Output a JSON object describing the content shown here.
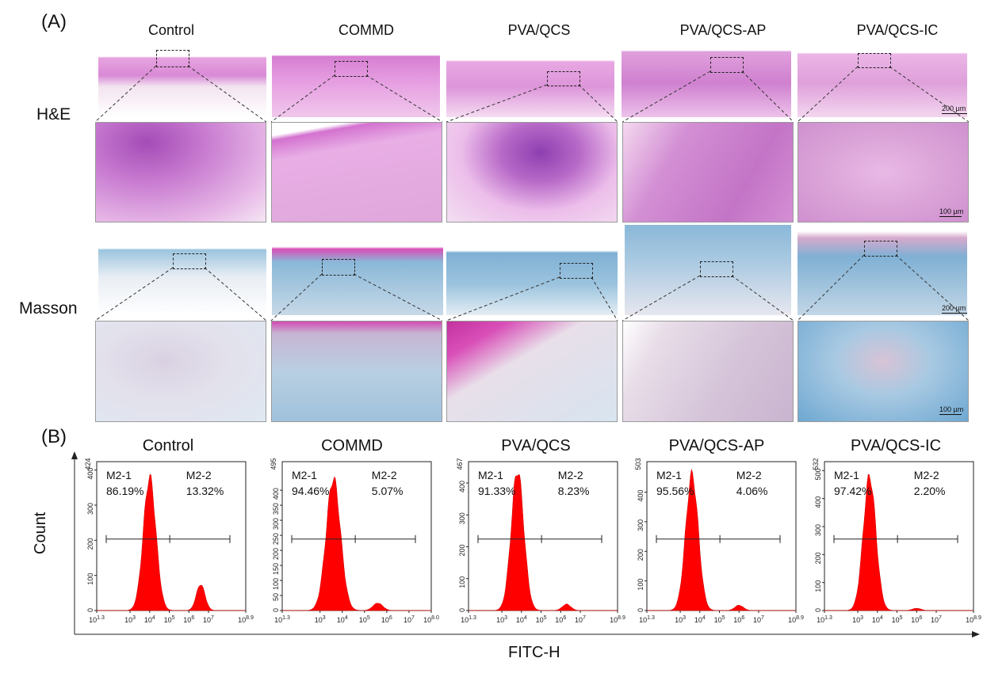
{
  "panel_a_label": "(A)",
  "panel_b_label": "(B)",
  "groups": [
    "Control",
    "COMMD",
    "PVA/QCS",
    "PVA/QCS-AP",
    "PVA/QCS-IC"
  ],
  "row_labels": {
    "he": "H&E",
    "masson": "Masson"
  },
  "scale_bars": {
    "low": "200 µm",
    "high": "100 µm"
  },
  "colors": {
    "he": "#d98ad6",
    "he_dark": "#a34ab3",
    "masson_blue": "#8ab8d8",
    "masson_pink": "#d94fb8",
    "histogram": "#ff0000"
  },
  "flow": {
    "xlabel": "FITC-H",
    "ylabel": "Count",
    "gate_left": "M2-1",
    "gate_right": "M2-2"
  },
  "chart_data": [
    {
      "type": "area",
      "title": "Control",
      "ymax_label": "424",
      "ylim": [
        0,
        424
      ],
      "xlim": [
        1.3,
        8.9
      ],
      "x_scale": "log10",
      "xmax_label": "8.9",
      "yticks": [
        "0",
        "100",
        "200",
        "300",
        "400"
      ],
      "xticks": [
        "1.3",
        "3",
        "4",
        "5",
        "6",
        "7",
        "8.9"
      ],
      "gate_labels": [
        "M2-1",
        "M2-2"
      ],
      "percent_left": "86.19%",
      "percent_right": "13.32%",
      "peaks": [
        {
          "log_x": 4.0,
          "height": 380
        },
        {
          "log_x": 6.6,
          "height": 75
        }
      ]
    },
    {
      "type": "area",
      "title": "COMMD",
      "ymax_label": "495",
      "ylim": [
        0,
        495
      ],
      "xlim": [
        1.3,
        8.0
      ],
      "x_scale": "log10",
      "xmax_label": "8.0",
      "yticks": [
        "0",
        "50",
        "100",
        "150",
        "200",
        "250",
        "300",
        "350",
        "400"
      ],
      "xticks": [
        "1.3",
        "3",
        "4",
        "5",
        "6",
        "7",
        "8.0"
      ],
      "gate_labels": [
        "M2-1",
        "M2-2"
      ],
      "percent_left": "94.46%",
      "percent_right": "5.07%",
      "peaks": [
        {
          "log_x": 3.6,
          "height": 440
        },
        {
          "log_x": 5.6,
          "height": 25
        }
      ]
    },
    {
      "type": "area",
      "title": "PVA/QCS",
      "ymax_label": "467",
      "ylim": [
        0,
        467
      ],
      "xlim": [
        1.3,
        8.9
      ],
      "x_scale": "log10",
      "xmax_label": "8.9",
      "yticks": [
        "0",
        "100",
        "200",
        "300",
        "400"
      ],
      "xticks": [
        "1.3",
        "3",
        "4",
        "5",
        "6",
        "7",
        "8.9"
      ],
      "gate_labels": [
        "M2-1",
        "M2-2"
      ],
      "percent_left": "91.33%",
      "percent_right": "8.23%",
      "peaks": [
        {
          "log_x": 3.8,
          "height": 440
        },
        {
          "log_x": 6.3,
          "height": 20
        }
      ]
    },
    {
      "type": "area",
      "title": "PVA/QCS-AP",
      "ymax_label": "503",
      "ylim": [
        0,
        503
      ],
      "xlim": [
        1.3,
        8.9
      ],
      "x_scale": "log10",
      "xmax_label": "8.9",
      "yticks": [
        "0",
        "100",
        "200",
        "300",
        "400"
      ],
      "xticks": [
        "1.3",
        "3",
        "4",
        "5",
        "6",
        "7",
        "8.9"
      ],
      "gate_labels": [
        "M2-1",
        "M2-2"
      ],
      "percent_left": "95.56%",
      "percent_right": "4.06%",
      "peaks": [
        {
          "log_x": 3.6,
          "height": 460
        },
        {
          "log_x": 6.0,
          "height": 18
        }
      ]
    },
    {
      "type": "area",
      "title": "PVA/QCS-IC",
      "ymax_label": "532",
      "ylim": [
        0,
        532
      ],
      "xlim": [
        1.3,
        8.9
      ],
      "x_scale": "log10",
      "xmax_label": "8.9",
      "yticks": [
        "0",
        "100",
        "200",
        "300",
        "400",
        "500"
      ],
      "xticks": [
        "1.3",
        "3",
        "4",
        "5",
        "6",
        "7",
        "8.9"
      ],
      "gate_labels": [
        "M2-1",
        "M2-2"
      ],
      "percent_left": "97.42%",
      "percent_right": "2.20%",
      "peaks": [
        {
          "log_x": 3.6,
          "height": 480
        },
        {
          "log_x": 6.0,
          "height": 8
        }
      ]
    }
  ]
}
